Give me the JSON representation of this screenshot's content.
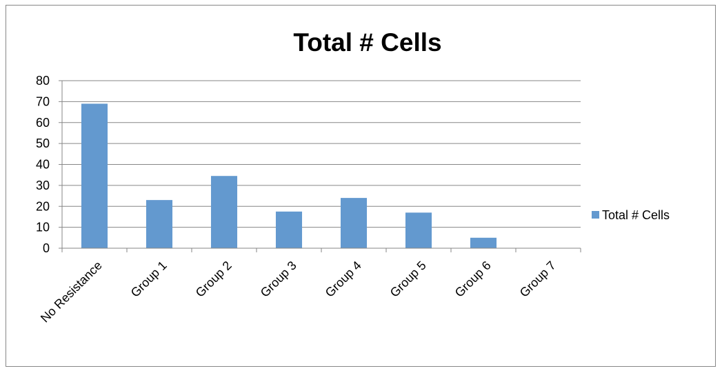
{
  "chart_data": {
    "type": "bar",
    "title": "Total # Cells",
    "xlabel": "",
    "ylabel": "",
    "categories": [
      "No Resistance",
      "Group 1",
      "Group 2",
      "Group 3",
      "Group 4",
      "Group 5",
      "Group 6",
      "Group 7"
    ],
    "series": [
      {
        "name": "Total # Cells",
        "values": [
          69,
          23,
          34.5,
          17.5,
          24,
          17,
          5,
          0
        ],
        "color": "#6399cf"
      }
    ],
    "ylim": [
      0,
      80
    ],
    "yticks": [
      0,
      10,
      20,
      30,
      40,
      50,
      60,
      70,
      80
    ],
    "grid": true,
    "legend": "right"
  }
}
